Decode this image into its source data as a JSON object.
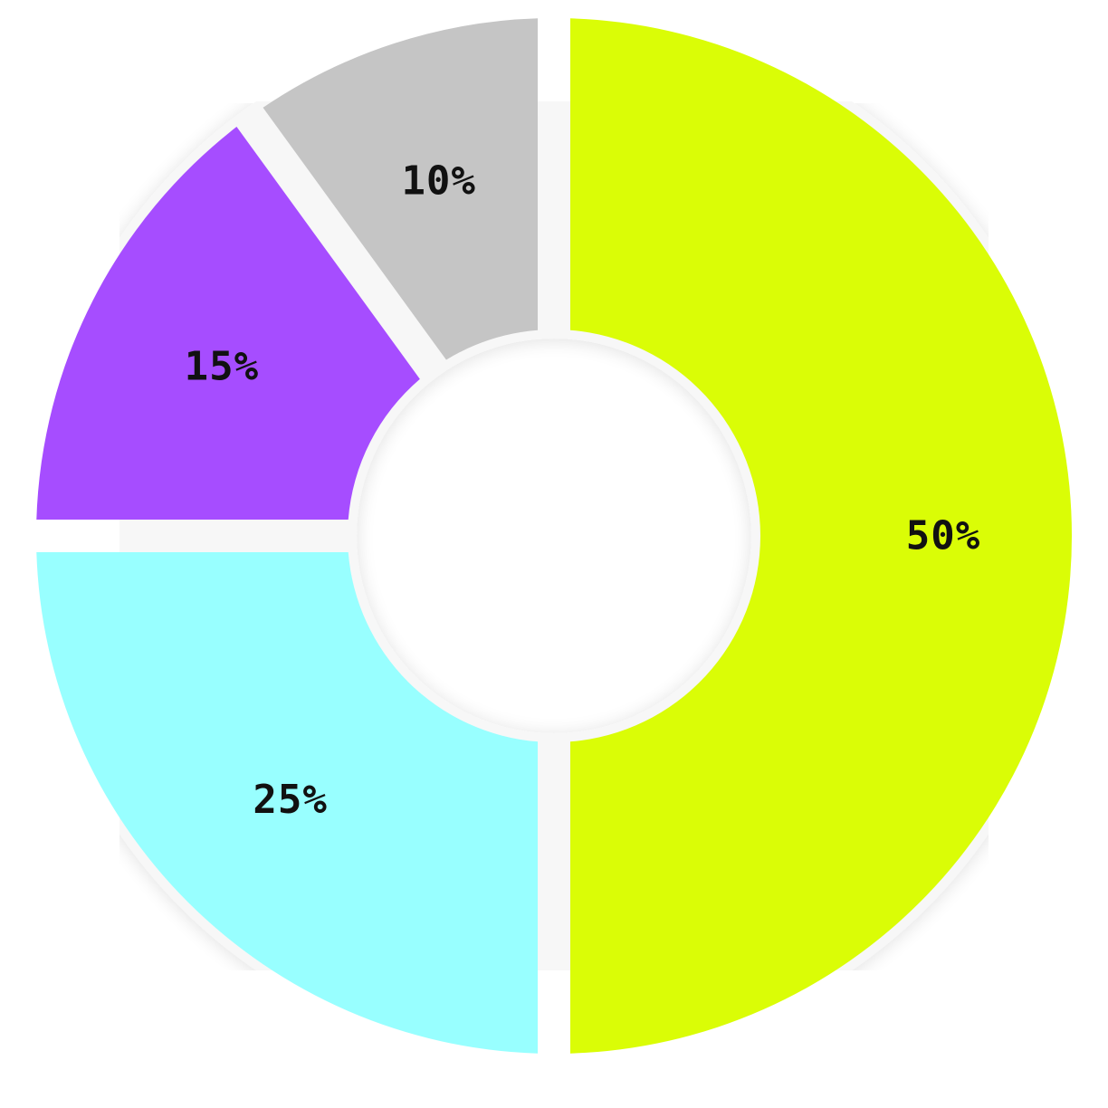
{
  "chart_data": {
    "type": "pie",
    "variant": "donut",
    "slices": [
      {
        "label": "50%",
        "value": 50,
        "color": "#DAFD06"
      },
      {
        "label": "25%",
        "value": 25,
        "color": "#98FFFF"
      },
      {
        "label": "15%",
        "value": 15,
        "color": "#A64DFF"
      },
      {
        "label": "10%",
        "value": 10,
        "color": "#C5C5C5"
      }
    ],
    "start": "top",
    "direction": "clockwise",
    "legend": "none"
  }
}
